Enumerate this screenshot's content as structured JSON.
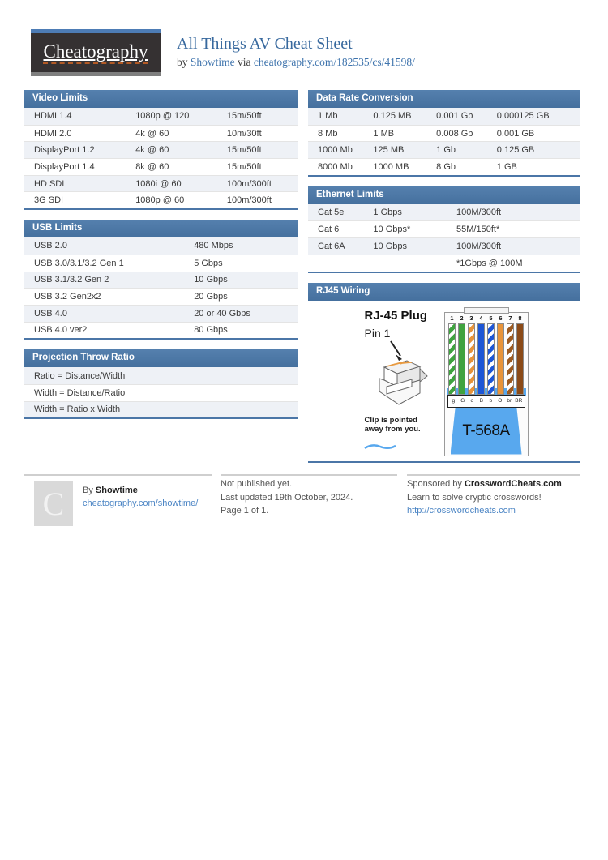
{
  "header": {
    "logo_text": "Cheatography",
    "title": "All Things AV Cheat Sheet",
    "byline_prefix": "by",
    "author": "Showtime",
    "via_word": "via",
    "sheet_url": "cheatography.com/182535/cs/41598/"
  },
  "colors": {
    "accent_blue": "#4b76a7",
    "link_blue": "#4a84c4",
    "title_blue": "#38699e",
    "row_alt": "#eef1f6",
    "connector_blue": "#58a8ee"
  },
  "sections": {
    "video_limits": {
      "title": "Video Limits",
      "rows": [
        [
          "HDMI 1.4",
          "1080p @ 120",
          "15m/50ft"
        ],
        [
          "HDMI 2.0",
          "4k @ 60",
          "10m/30ft"
        ],
        [
          "DisplayPort 1.2",
          "4k @ 60",
          "15m/50ft"
        ],
        [
          "DisplayPort 1.4",
          "8k @ 60",
          "15m/50ft"
        ],
        [
          "HD SDI",
          "1080i @ 60",
          "100m/300ft"
        ],
        [
          "3G SDI",
          "1080p @ 60",
          "100m/300ft"
        ]
      ]
    },
    "usb_limits": {
      "title": "USB Limits",
      "rows": [
        [
          "USB 2.0",
          "480 Mbps"
        ],
        [
          "USB 3.0/3.1/3.2 Gen 1",
          "5 Gbps"
        ],
        [
          "USB 3.1/3.2 Gen 2",
          "10 Gbps"
        ],
        [
          "USB 3.2 Gen2x2",
          "20 Gbps"
        ],
        [
          "USB 4.0",
          "20 or 40 Gbps"
        ],
        [
          "USB 4.0 ver2",
          "80 Gbps"
        ]
      ]
    },
    "projection_throw_ratio": {
      "title": "Projection Throw Ratio",
      "rows": [
        [
          "Ratio = Distance/Width"
        ],
        [
          "Width = Distance/Ratio"
        ],
        [
          "Width = Ratio x Width"
        ]
      ]
    },
    "data_rate_conversion": {
      "title": "Data Rate Conversion",
      "rows": [
        [
          "1 Mb",
          "0.125 MB",
          "0.001 Gb",
          "0.000125 GB"
        ],
        [
          "8 Mb",
          "1 MB",
          "0.008 Gb",
          "0.001 GB"
        ],
        [
          "1000 Mb",
          "125 MB",
          "1 Gb",
          "0.125 GB"
        ],
        [
          "8000 Mb",
          "1000 MB",
          "8 Gb",
          "1 GB"
        ]
      ]
    },
    "ethernet_limits": {
      "title": "Ethernet Limits",
      "rows": [
        [
          "Cat 5e",
          "1 Gbps",
          "100M/300ft"
        ],
        [
          "Cat 6",
          "10 Gbps*",
          "55M/150ft*"
        ],
        [
          "Cat 6A",
          "10 Gbps",
          "100M/300ft"
        ],
        [
          "",
          "",
          "*1Gbps @ 100M"
        ]
      ]
    },
    "rj45_wiring": {
      "title": "RJ45 Wiring",
      "plug_title": "RJ-45 Plug",
      "pin_label": "Pin 1",
      "clip_note_line1": "Clip is pointed",
      "clip_note_line2": "away from you.",
      "standard_label": "T-568A",
      "wires": [
        {
          "num": "1",
          "label": "g",
          "color": "#3fa33f",
          "style": "stripe"
        },
        {
          "num": "2",
          "label": "G",
          "color": "#3fa33f",
          "style": "solid"
        },
        {
          "num": "3",
          "label": "o",
          "color": "#e8943a",
          "style": "stripe"
        },
        {
          "num": "4",
          "label": "B",
          "color": "#1d56d6",
          "style": "solid"
        },
        {
          "num": "5",
          "label": "b",
          "color": "#1d56d6",
          "style": "stripe"
        },
        {
          "num": "6",
          "label": "O",
          "color": "#e8943a",
          "style": "solid"
        },
        {
          "num": "7",
          "label": "br",
          "color": "#9c5a20",
          "style": "stripe"
        },
        {
          "num": "8",
          "label": "BR",
          "color": "#8b4a17",
          "style": "solid"
        }
      ]
    }
  },
  "footer": {
    "avatar_letter": "C",
    "by_prefix": "By",
    "author": "Showtime",
    "author_url": "cheatography.com/showtime/",
    "status_line1": "Not published yet.",
    "status_line2": "Last updated 19th October, 2024.",
    "status_line3": "Page 1 of 1.",
    "sponsor_prefix": "Sponsored by",
    "sponsor_name": "CrosswordCheats.com",
    "sponsor_tagline": "Learn to solve cryptic crosswords!",
    "sponsor_url": "http://crosswordcheats.com"
  }
}
